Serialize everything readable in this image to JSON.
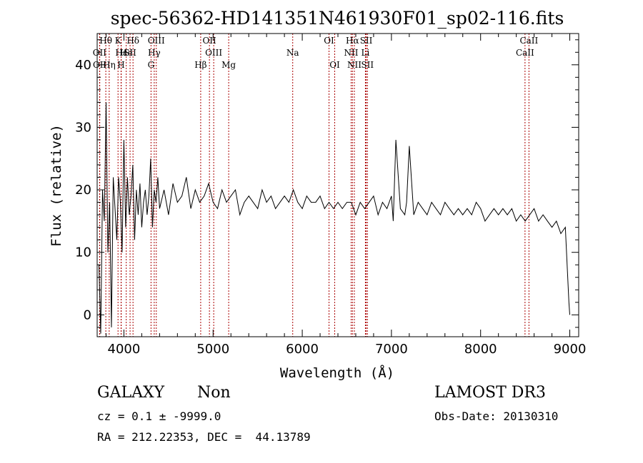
{
  "chart_data": {
    "type": "line",
    "title": "spec-56362-HD141351N461930F01_sp02-116.fits",
    "xlabel": "Wavelength (Å)",
    "ylabel": "Flux (relative)",
    "xlim": [
      3700,
      9100
    ],
    "ylim": [
      -3.5,
      45
    ],
    "x_ticks": [
      4000,
      5000,
      6000,
      7000,
      8000,
      9000
    ],
    "y_ticks": [
      0,
      10,
      20,
      30,
      40
    ],
    "series_color": "#000000",
    "line_color": "#aa0000",
    "spectrum": {
      "name": "",
      "x": [
        3720,
        3740,
        3760,
        3780,
        3800,
        3820,
        3840,
        3860,
        3880,
        3900,
        3920,
        3940,
        3960,
        3980,
        4000,
        4020,
        4040,
        4060,
        4080,
        4100,
        4120,
        4140,
        4160,
        4180,
        4200,
        4220,
        4240,
        4260,
        4280,
        4300,
        4320,
        4340,
        4360,
        4380,
        4400,
        4450,
        4500,
        4550,
        4600,
        4650,
        4700,
        4750,
        4800,
        4850,
        4900,
        4950,
        5000,
        5050,
        5100,
        5150,
        5200,
        5250,
        5300,
        5350,
        5400,
        5450,
        5500,
        5550,
        5600,
        5650,
        5700,
        5750,
        5800,
        5850,
        5900,
        5950,
        6000,
        6050,
        6100,
        6150,
        6200,
        6250,
        6300,
        6350,
        6400,
        6450,
        6500,
        6550,
        6600,
        6650,
        6700,
        6750,
        6800,
        6850,
        6900,
        6950,
        7000,
        7020,
        7050,
        7100,
        7150,
        7170,
        7200,
        7250,
        7300,
        7350,
        7400,
        7450,
        7500,
        7550,
        7600,
        7650,
        7700,
        7750,
        7800,
        7850,
        7900,
        7950,
        8000,
        8050,
        8100,
        8150,
        8200,
        8250,
        8300,
        8350,
        8400,
        8450,
        8500,
        8550,
        8600,
        8650,
        8700,
        8750,
        8800,
        8850,
        8900,
        8950,
        8990,
        9000
      ],
      "y": [
        8,
        -3,
        20,
        15,
        34,
        10,
        18,
        -2,
        22,
        17,
        12,
        22,
        18,
        10,
        28,
        14,
        22,
        16,
        19,
        24,
        12,
        20,
        16,
        21,
        14,
        18,
        20,
        16,
        19,
        25,
        14,
        20,
        18,
        22,
        17,
        20,
        16,
        21,
        18,
        19,
        22,
        17,
        20,
        18,
        19,
        21,
        18,
        17,
        20,
        18,
        19,
        20,
        16,
        18,
        19,
        18,
        17,
        20,
        18,
        19,
        17,
        18,
        19,
        18,
        20,
        18,
        17,
        19,
        18,
        18,
        19,
        17,
        18,
        17,
        18,
        17,
        18,
        18,
        16,
        18,
        17,
        18,
        19,
        16,
        18,
        17,
        19,
        15,
        28,
        17,
        16,
        18,
        27,
        16,
        18,
        17,
        16,
        18,
        17,
        16,
        18,
        17,
        16,
        17,
        16,
        17,
        16,
        18,
        17,
        15,
        16,
        17,
        16,
        17,
        16,
        17,
        15,
        16,
        15,
        16,
        17,
        15,
        16,
        15,
        14,
        15,
        13,
        14,
        2,
        0
      ]
    },
    "spectral_lines": [
      {
        "name": "Hθ",
        "wavelength": 3797,
        "row": 1
      },
      {
        "name": "OII",
        "wavelength": 3727,
        "row": 2
      },
      {
        "name": "OII",
        "wavelength": 3729,
        "row": 3
      },
      {
        "name": "Hε",
        "wavelength": 3970,
        "row": 2
      },
      {
        "name": "Hη",
        "wavelength": 3835,
        "row": 3
      },
      {
        "name": "K",
        "wavelength": 3934,
        "row": 1
      },
      {
        "name": "He",
        "wavelength": 4026,
        "row": 2
      },
      {
        "name": "H",
        "wavelength": 3968,
        "row": 3
      },
      {
        "name": "Hδ",
        "wavelength": 4102,
        "row": 1
      },
      {
        "name": "SII",
        "wavelength": 4069,
        "row": 2
      },
      {
        "name": "OIII",
        "wavelength": 4363,
        "row": 1
      },
      {
        "name": "Hγ",
        "wavelength": 4340,
        "row": 2
      },
      {
        "name": "G",
        "wavelength": 4304,
        "row": 3
      },
      {
        "name": "OII",
        "wavelength": 4959,
        "row": 1
      },
      {
        "name": "OIII",
        "wavelength": 5007,
        "row": 2
      },
      {
        "name": "Hβ",
        "wavelength": 4861,
        "row": 3
      },
      {
        "name": "Mg",
        "wavelength": 5175,
        "row": 3
      },
      {
        "name": "Na",
        "wavelength": 5893,
        "row": 2
      },
      {
        "name": "OI",
        "wavelength": 6300,
        "row": 1
      },
      {
        "name": "OI",
        "wavelength": 6364,
        "row": 3
      },
      {
        "name": "Hα",
        "wavelength": 6563,
        "row": 1
      },
      {
        "name": "SII",
        "wavelength": 6717,
        "row": 1
      },
      {
        "name": "NII",
        "wavelength": 6548,
        "row": 2
      },
      {
        "name": "Li",
        "wavelength": 6708,
        "row": 2
      },
      {
        "name": "NII",
        "wavelength": 6584,
        "row": 3
      },
      {
        "name": "SII",
        "wavelength": 6731,
        "row": 3
      },
      {
        "name": "CaII",
        "wavelength": 8542,
        "row": 1
      },
      {
        "name": "CaII",
        "wavelength": 8498,
        "row": 2
      }
    ]
  },
  "footer": {
    "object_class": "GALAXY",
    "subclass": "Non",
    "survey": "LAMOST DR3",
    "cz": "cz = 0.1 ± -9999.0",
    "obs_date": "Obs-Date: 20130310",
    "coords": "RA = 212.22353, DEC =  44.13789"
  }
}
